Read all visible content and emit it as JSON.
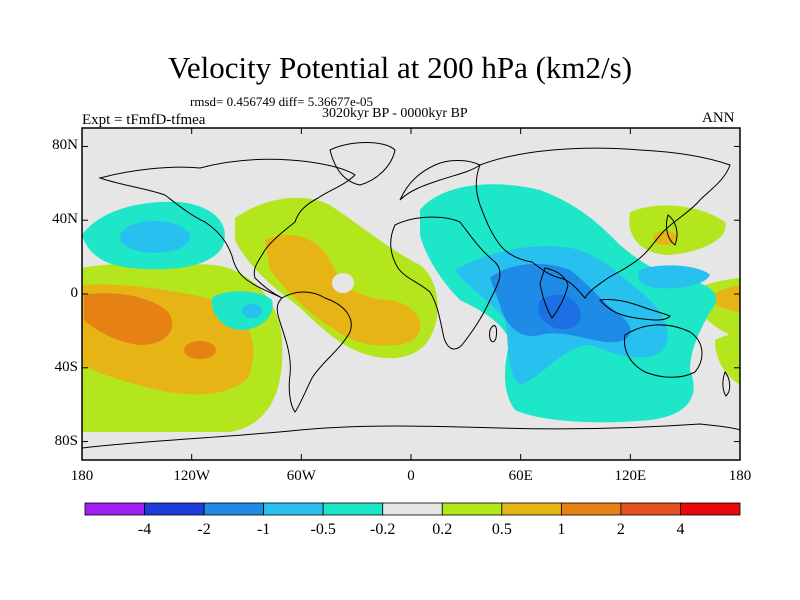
{
  "title": "Velocity Potential at 200 hPa (km2/s)",
  "stats": "rmsd= 0.456749 diff= 5.36677e-05",
  "period": "3020kyr BP - 0000kyr BP",
  "experiment": "Expt = tFmfD-tfmea",
  "season": "ANN",
  "axes": {
    "y_ticks": [
      {
        "label": "80N",
        "lat": 80
      },
      {
        "label": "40N",
        "lat": 40
      },
      {
        "label": "0",
        "lat": 0
      },
      {
        "label": "40S",
        "lat": -40
      },
      {
        "label": "80S",
        "lat": -80
      }
    ],
    "x_ticks": [
      {
        "label": "180",
        "lon": -180
      },
      {
        "label": "120W",
        "lon": -120
      },
      {
        "label": "60W",
        "lon": -60
      },
      {
        "label": "0",
        "lon": 0
      },
      {
        "label": "60E",
        "lon": 60
      },
      {
        "label": "120E",
        "lon": 120
      },
      {
        "label": "180",
        "lon": 180
      }
    ],
    "lon_range": [
      -180,
      180
    ],
    "lat_range": [
      -90,
      90
    ]
  },
  "colorbar": {
    "colors": [
      "#a020f0",
      "#1e3cdc",
      "#1e8ce6",
      "#28c0ee",
      "#1ee6c8",
      "#e6e6e6",
      "#b4e61e",
      "#e6b414",
      "#e68214",
      "#e6501e",
      "#e60a0a"
    ],
    "labels": [
      "-4",
      "-2",
      "-1",
      "-0.5",
      "-0.2",
      "0.2",
      "0.5",
      "1",
      "2",
      "4"
    ]
  }
}
